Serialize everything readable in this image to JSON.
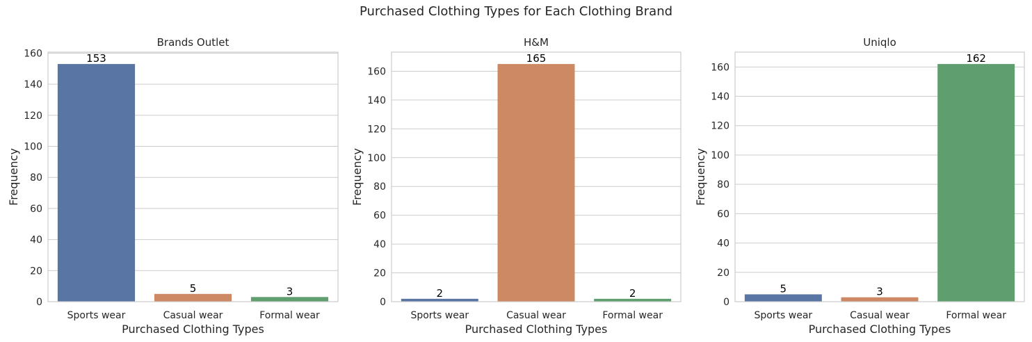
{
  "figure": {
    "title": "Purchased Clothing Types for Each Clothing Brand"
  },
  "colors": {
    "blue": "#5975a4",
    "orange": "#cc8963",
    "green": "#5f9e6e",
    "grid": "#cccccc",
    "spine": "#cccccc",
    "label_text": "#000000"
  },
  "chart_data": [
    {
      "type": "bar",
      "title": "Brands Outlet",
      "xlabel": "Purchased Clothing Types",
      "ylabel": "Frequency",
      "categories": [
        "Sports wear",
        "Casual wear",
        "Formal wear"
      ],
      "values": [
        153,
        5,
        3
      ],
      "bar_colors": [
        "blue",
        "orange",
        "green"
      ],
      "ylim": [
        0,
        160.65
      ],
      "yticks": [
        0,
        20,
        40,
        60,
        80,
        100,
        120,
        140,
        160
      ],
      "grid": "horizontal",
      "data_labels": true
    },
    {
      "type": "bar",
      "title": "H&M",
      "xlabel": "Purchased Clothing Types",
      "ylabel": "Frequency",
      "categories": [
        "Sports wear",
        "Casual wear",
        "Formal wear"
      ],
      "values": [
        2,
        165,
        2
      ],
      "bar_colors": [
        "blue",
        "orange",
        "green"
      ],
      "ylim": [
        0,
        173.25
      ],
      "yticks": [
        0,
        20,
        40,
        60,
        80,
        100,
        120,
        140,
        160
      ],
      "grid": "horizontal",
      "data_labels": true
    },
    {
      "type": "bar",
      "title": "Uniqlo",
      "xlabel": "Purchased Clothing Types",
      "ylabel": "Frequency",
      "categories": [
        "Sports wear",
        "Casual wear",
        "Formal wear"
      ],
      "values": [
        5,
        3,
        162
      ],
      "bar_colors": [
        "blue",
        "orange",
        "green"
      ],
      "ylim": [
        0,
        170.1
      ],
      "yticks": [
        0,
        20,
        40,
        60,
        80,
        100,
        120,
        140,
        160
      ],
      "grid": "horizontal",
      "data_labels": true
    }
  ]
}
